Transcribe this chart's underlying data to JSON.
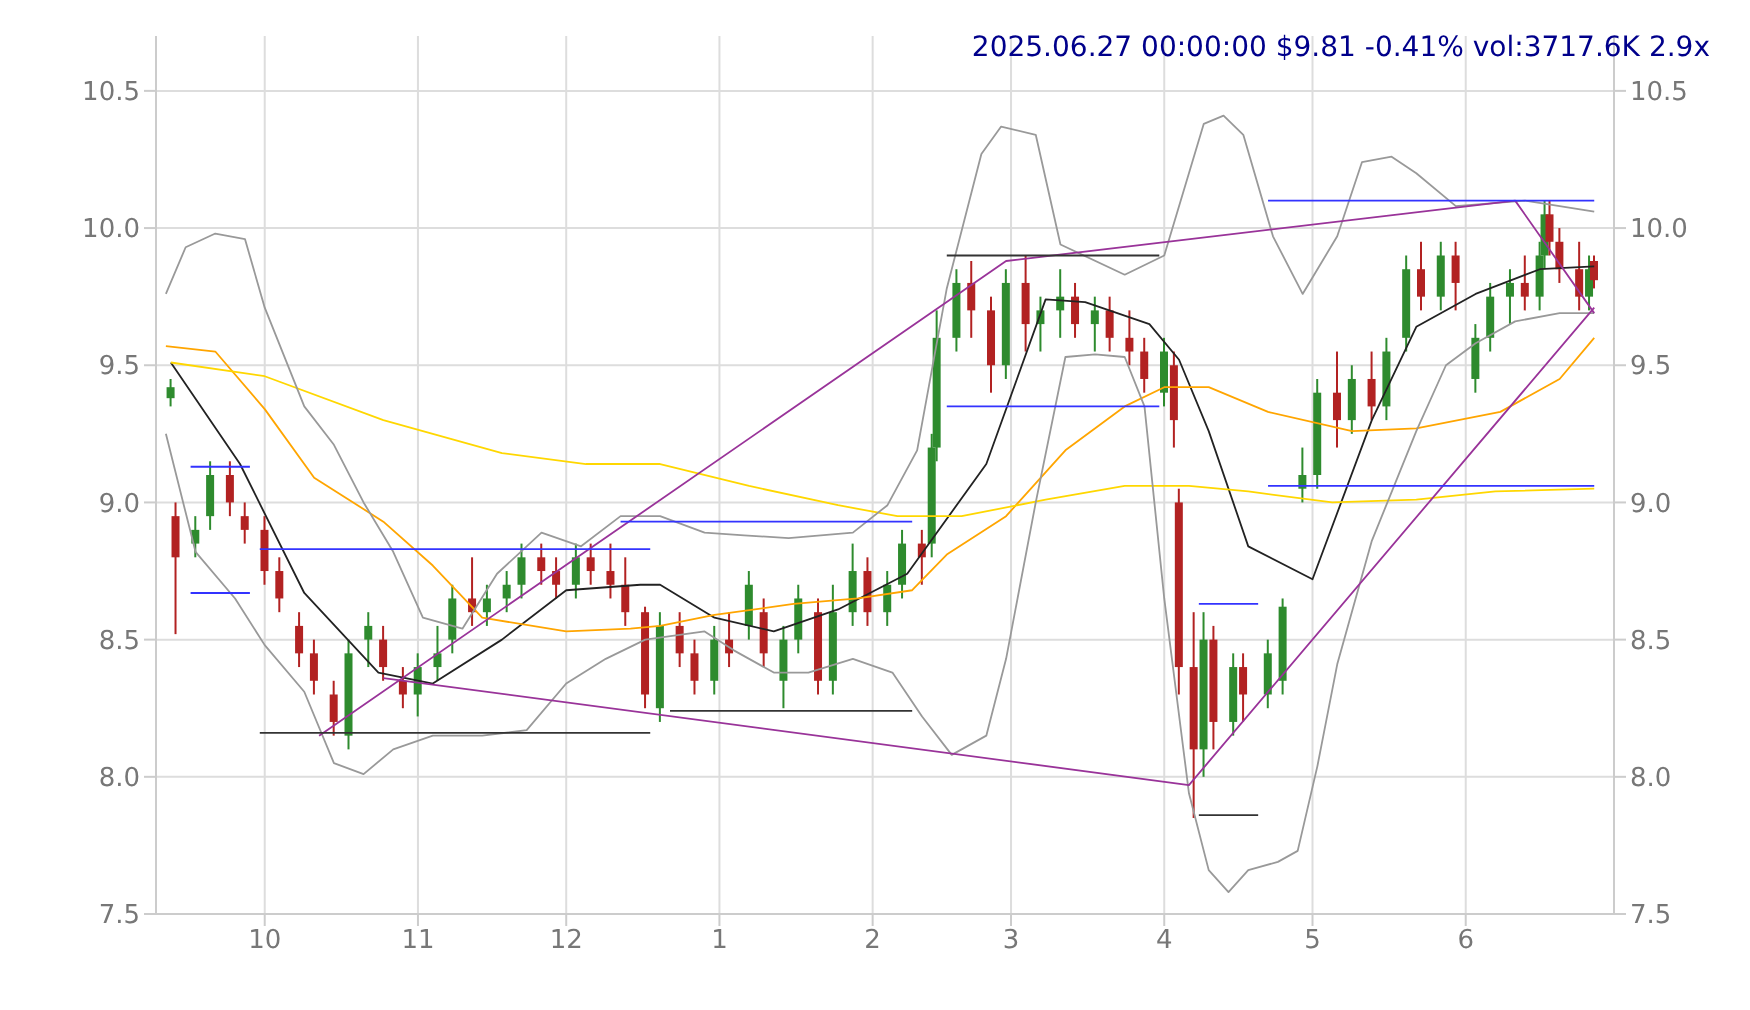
{
  "chart_data": {
    "type": "candlestick",
    "title": "2025.06.27 00:00:00 $9.81 -0.41% vol:3717.6K 2.9x",
    "grid": true,
    "marker": "none",
    "xlim": [
      "2024-09-09",
      "2025-07-01"
    ],
    "xticks": [
      {
        "value": "2024-10-01",
        "label": "10"
      },
      {
        "value": "2024-11-01",
        "label": "11"
      },
      {
        "value": "2024-12-01",
        "label": "12"
      },
      {
        "value": "2025-01-01",
        "label": "1"
      },
      {
        "value": "2025-02-01",
        "label": "2"
      },
      {
        "value": "2025-03-01",
        "label": "3"
      },
      {
        "value": "2025-04-01",
        "label": "4"
      },
      {
        "value": "2025-05-01",
        "label": "5"
      },
      {
        "value": "2025-06-01",
        "label": "6"
      }
    ],
    "ylim": [
      7.5,
      10.7
    ],
    "yticks": [
      {
        "value": 7.5,
        "label": "7.5"
      },
      {
        "value": 8,
        "label": "8.0"
      },
      {
        "value": 8.5,
        "label": "8.5"
      },
      {
        "value": 9,
        "label": "9.0"
      },
      {
        "value": 9.5,
        "label": "9.5"
      },
      {
        "value": 10,
        "label": "10.0"
      },
      {
        "value": 10.5,
        "label": "10.5"
      }
    ],
    "y2lim": [
      7.5,
      10.7
    ],
    "y2ticks": [
      {
        "value": 7.5,
        "label": "7.5"
      },
      {
        "value": 8,
        "label": "8.0"
      },
      {
        "value": 8.5,
        "label": "8.5"
      },
      {
        "value": 9,
        "label": "9.0"
      },
      {
        "value": 9.5,
        "label": "9.5"
      },
      {
        "value": 10,
        "label": "10.0"
      },
      {
        "value": 10.5,
        "label": "10.5"
      }
    ],
    "x": [
      "2024-09-12",
      "2024-09-13",
      "2024-09-17",
      "2024-09-20",
      "2024-09-24",
      "2024-09-27",
      "2024-10-01",
      "2024-10-04",
      "2024-10-08",
      "2024-10-11",
      "2024-10-15",
      "2024-10-18",
      "2024-10-22",
      "2024-10-25",
      "2024-10-29",
      "2024-11-01",
      "2024-11-05",
      "2024-11-08",
      "2024-11-12",
      "2024-11-15",
      "2024-11-19",
      "2024-11-22",
      "2024-11-26",
      "2024-11-29",
      "2024-12-03",
      "2024-12-06",
      "2024-12-10",
      "2024-12-13",
      "2024-12-17",
      "2024-12-20",
      "2024-12-24",
      "2024-12-27",
      "2024-12-31",
      "2025-01-03",
      "2025-01-07",
      "2025-01-10",
      "2025-01-14",
      "2025-01-17",
      "2025-01-21",
      "2025-01-24",
      "2025-01-28",
      "2025-01-31",
      "2025-02-04",
      "2025-02-07",
      "2025-02-11",
      "2025-02-13",
      "2025-02-14",
      "2025-02-18",
      "2025-02-21",
      "2025-02-25",
      "2025-02-28",
      "2025-03-04",
      "2025-03-07",
      "2025-03-11",
      "2025-03-14",
      "2025-03-18",
      "2025-03-21",
      "2025-03-25",
      "2025-03-28",
      "2025-04-01",
      "2025-04-03",
      "2025-04-04",
      "2025-04-07",
      "2025-04-09",
      "2025-04-11",
      "2025-04-15",
      "2025-04-17",
      "2025-04-22",
      "2025-04-25",
      "2025-04-29",
      "2025-05-02",
      "2025-05-06",
      "2025-05-09",
      "2025-05-13",
      "2025-05-16",
      "2025-05-20",
      "2025-05-23",
      "2025-05-27",
      "2025-05-30",
      "2025-06-03",
      "2025-06-06",
      "2025-06-10",
      "2025-06-13",
      "2025-06-16",
      "2025-06-17",
      "2025-06-18",
      "2025-06-20",
      "2025-06-24",
      "2025-06-26",
      "2025-06-27"
    ],
    "ohlc": [
      [
        9.38,
        9.45,
        9.35,
        9.42
      ],
      [
        8.95,
        9.0,
        8.52,
        8.8
      ],
      [
        8.85,
        8.95,
        8.8,
        8.9
      ],
      [
        8.95,
        9.15,
        8.9,
        9.1
      ],
      [
        9.1,
        9.15,
        8.95,
        9.0
      ],
      [
        8.95,
        9.0,
        8.85,
        8.9
      ],
      [
        8.9,
        8.95,
        8.7,
        8.75
      ],
      [
        8.75,
        8.8,
        8.6,
        8.65
      ],
      [
        8.55,
        8.6,
        8.4,
        8.45
      ],
      [
        8.45,
        8.5,
        8.3,
        8.35
      ],
      [
        8.3,
        8.35,
        8.15,
        8.2
      ],
      [
        8.15,
        8.5,
        8.1,
        8.45
      ],
      [
        8.5,
        8.6,
        8.4,
        8.55
      ],
      [
        8.5,
        8.55,
        8.35,
        8.4
      ],
      [
        8.35,
        8.4,
        8.25,
        8.3
      ],
      [
        8.3,
        8.45,
        8.22,
        8.4
      ],
      [
        8.4,
        8.55,
        8.35,
        8.45
      ],
      [
        8.5,
        8.7,
        8.45,
        8.65
      ],
      [
        8.65,
        8.8,
        8.55,
        8.6
      ],
      [
        8.6,
        8.7,
        8.55,
        8.65
      ],
      [
        8.65,
        8.75,
        8.6,
        8.7
      ],
      [
        8.7,
        8.85,
        8.65,
        8.8
      ],
      [
        8.8,
        8.85,
        8.7,
        8.75
      ],
      [
        8.75,
        8.8,
        8.65,
        8.7
      ],
      [
        8.7,
        8.85,
        8.65,
        8.8
      ],
      [
        8.8,
        8.85,
        8.7,
        8.75
      ],
      [
        8.75,
        8.85,
        8.65,
        8.7
      ],
      [
        8.7,
        8.8,
        8.55,
        8.6
      ],
      [
        8.6,
        8.62,
        8.25,
        8.3
      ],
      [
        8.25,
        8.6,
        8.2,
        8.55
      ],
      [
        8.55,
        8.6,
        8.4,
        8.45
      ],
      [
        8.45,
        8.5,
        8.3,
        8.35
      ],
      [
        8.35,
        8.55,
        8.3,
        8.5
      ],
      [
        8.5,
        8.6,
        8.4,
        8.45
      ],
      [
        8.55,
        8.75,
        8.5,
        8.7
      ],
      [
        8.6,
        8.65,
        8.4,
        8.45
      ],
      [
        8.35,
        8.55,
        8.25,
        8.5
      ],
      [
        8.5,
        8.7,
        8.45,
        8.65
      ],
      [
        8.6,
        8.65,
        8.3,
        8.35
      ],
      [
        8.35,
        8.7,
        8.3,
        8.6
      ],
      [
        8.6,
        8.85,
        8.55,
        8.75
      ],
      [
        8.75,
        8.8,
        8.55,
        8.6
      ],
      [
        8.6,
        8.75,
        8.55,
        8.7
      ],
      [
        8.7,
        8.9,
        8.65,
        8.85
      ],
      [
        8.85,
        8.9,
        8.7,
        8.8
      ],
      [
        8.85,
        9.25,
        8.8,
        9.2
      ],
      [
        9.2,
        9.7,
        9.15,
        9.6
      ],
      [
        9.6,
        9.85,
        9.55,
        9.8
      ],
      [
        9.8,
        9.88,
        9.6,
        9.7
      ],
      [
        9.7,
        9.75,
        9.4,
        9.5
      ],
      [
        9.5,
        9.85,
        9.45,
        9.8
      ],
      [
        9.8,
        9.9,
        9.55,
        9.65
      ],
      [
        9.65,
        9.75,
        9.55,
        9.7
      ],
      [
        9.7,
        9.85,
        9.6,
        9.75
      ],
      [
        9.75,
        9.8,
        9.6,
        9.65
      ],
      [
        9.65,
        9.75,
        9.55,
        9.7
      ],
      [
        9.7,
        9.75,
        9.55,
        9.6
      ],
      [
        9.6,
        9.7,
        9.5,
        9.55
      ],
      [
        9.55,
        9.6,
        9.4,
        9.45
      ],
      [
        9.4,
        9.6,
        9.35,
        9.55
      ],
      [
        9.5,
        9.55,
        9.2,
        9.3
      ],
      [
        9.0,
        9.05,
        8.3,
        8.4
      ],
      [
        8.4,
        8.6,
        7.85,
        8.1
      ],
      [
        8.1,
        8.6,
        8.0,
        8.5
      ],
      [
        8.5,
        8.55,
        8.1,
        8.2
      ],
      [
        8.2,
        8.45,
        8.15,
        8.4
      ],
      [
        8.4,
        8.45,
        8.2,
        8.3
      ],
      [
        8.3,
        8.5,
        8.25,
        8.45
      ],
      [
        8.35,
        8.65,
        8.3,
        8.62
      ],
      [
        9.05,
        9.2,
        9.0,
        9.1
      ],
      [
        9.1,
        9.45,
        9.05,
        9.4
      ],
      [
        9.4,
        9.55,
        9.2,
        9.3
      ],
      [
        9.3,
        9.5,
        9.25,
        9.45
      ],
      [
        9.45,
        9.55,
        9.3,
        9.35
      ],
      [
        9.35,
        9.6,
        9.3,
        9.55
      ],
      [
        9.6,
        9.9,
        9.55,
        9.85
      ],
      [
        9.85,
        9.95,
        9.7,
        9.75
      ],
      [
        9.75,
        9.95,
        9.7,
        9.9
      ],
      [
        9.9,
        9.95,
        9.7,
        9.8
      ],
      [
        9.45,
        9.65,
        9.4,
        9.6
      ],
      [
        9.6,
        9.8,
        9.55,
        9.75
      ],
      [
        9.75,
        9.85,
        9.65,
        9.8
      ],
      [
        9.8,
        9.9,
        9.7,
        9.75
      ],
      [
        9.75,
        9.95,
        9.7,
        9.9
      ],
      [
        9.9,
        10.1,
        9.85,
        10.05
      ],
      [
        10.05,
        10.1,
        9.9,
        9.95
      ],
      [
        9.95,
        10.0,
        9.8,
        9.85
      ],
      [
        9.85,
        9.95,
        9.7,
        9.75
      ],
      [
        9.75,
        9.9,
        9.7,
        9.85
      ],
      [
        9.88,
        9.9,
        9.78,
        9.81
      ]
    ],
    "colors": [
      "#2e8b2e",
      "#b22222",
      "#2e8b2e",
      "#2e8b2e",
      "#b22222",
      "#b22222",
      "#b22222",
      "#b22222",
      "#b22222",
      "#b22222",
      "#b22222",
      "#2e8b2e",
      "#2e8b2e",
      "#b22222",
      "#b22222",
      "#2e8b2e",
      "#2e8b2e",
      "#2e8b2e",
      "#b22222",
      "#2e8b2e",
      "#2e8b2e",
      "#2e8b2e",
      "#b22222",
      "#b22222",
      "#2e8b2e",
      "#b22222",
      "#b22222",
      "#b22222",
      "#b22222",
      "#2e8b2e",
      "#b22222",
      "#b22222",
      "#2e8b2e",
      "#b22222",
      "#2e8b2e",
      "#b22222",
      "#2e8b2e",
      "#2e8b2e",
      "#b22222",
      "#2e8b2e",
      "#2e8b2e",
      "#b22222",
      "#2e8b2e",
      "#2e8b2e",
      "#b22222",
      "#2e8b2e",
      "#2e8b2e",
      "#2e8b2e",
      "#b22222",
      "#b22222",
      "#2e8b2e",
      "#b22222",
      "#2e8b2e",
      "#2e8b2e",
      "#b22222",
      "#2e8b2e",
      "#b22222",
      "#b22222",
      "#b22222",
      "#2e8b2e",
      "#b22222",
      "#b22222",
      "#b22222",
      "#2e8b2e",
      "#b22222",
      "#2e8b2e",
      "#b22222",
      "#2e8b2e",
      "#2e8b2e",
      "#2e8b2e",
      "#2e8b2e",
      "#b22222",
      "#2e8b2e",
      "#b22222",
      "#2e8b2e",
      "#2e8b2e",
      "#b22222",
      "#2e8b2e",
      "#b22222",
      "#2e8b2e",
      "#2e8b2e",
      "#2e8b2e",
      "#b22222",
      "#2e8b2e",
      "#2e8b2e",
      "#b22222",
      "#b22222",
      "#b22222",
      "#2e8b2e",
      "#b22222"
    ],
    "series": [
      {
        "type": "line",
        "color": "#222222",
        "x": [
          "2024-09-12",
          "2024-09-26",
          "2024-10-09",
          "2024-10-24",
          "2024-11-04",
          "2024-11-18",
          "2024-12-01",
          "2024-12-16",
          "2024-12-20",
          "2024-12-31",
          "2025-01-12",
          "2025-01-25",
          "2025-02-08",
          "2025-02-24",
          "2025-03-08",
          "2025-03-16",
          "2025-03-29",
          "2025-04-04",
          "2025-04-10",
          "2025-04-18",
          "2025-05-01",
          "2025-05-13",
          "2025-05-22",
          "2025-06-03",
          "2025-06-16",
          "2025-06-27"
        ],
        "values": [
          9.51,
          9.14,
          8.67,
          8.38,
          8.34,
          8.5,
          8.68,
          8.7,
          8.7,
          8.58,
          8.53,
          8.61,
          8.74,
          9.14,
          9.74,
          9.73,
          9.65,
          9.52,
          9.26,
          8.84,
          8.72,
          9.3,
          9.64,
          9.76,
          9.85,
          9.86
        ]
      },
      {
        "type": "line",
        "color": "#ffa500",
        "x": [
          "2024-09-11",
          "2024-09-21",
          "2024-10-01",
          "2024-10-11",
          "2024-10-25",
          "2024-11-04",
          "2024-11-14",
          "2024-12-01",
          "2024-12-14",
          "2024-12-20",
          "2024-12-31",
          "2025-01-16",
          "2025-01-29",
          "2025-02-09",
          "2025-02-16",
          "2025-02-28",
          "2025-03-12",
          "2025-03-24",
          "2025-04-01",
          "2025-04-10",
          "2025-04-22",
          "2025-05-09",
          "2025-05-22",
          "2025-06-08",
          "2025-06-20",
          "2025-06-27"
        ],
        "values": [
          9.57,
          9.55,
          9.34,
          9.09,
          8.93,
          8.77,
          8.58,
          8.53,
          8.54,
          8.55,
          8.59,
          8.63,
          8.65,
          8.68,
          8.81,
          8.95,
          9.19,
          9.35,
          9.42,
          9.42,
          9.33,
          9.26,
          9.27,
          9.33,
          9.45,
          9.6
        ]
      },
      {
        "type": "line",
        "color": "#ffd700",
        "x": [
          "2024-09-12",
          "2024-10-01",
          "2024-10-25",
          "2024-11-18",
          "2024-12-05",
          "2024-12-20",
          "2025-01-07",
          "2025-01-25",
          "2025-02-06",
          "2025-02-19",
          "2025-03-08",
          "2025-03-24",
          "2025-04-06",
          "2025-04-18",
          "2025-05-05",
          "2025-05-22",
          "2025-06-07",
          "2025-06-27"
        ],
        "values": [
          9.51,
          9.46,
          9.3,
          9.18,
          9.14,
          9.14,
          9.06,
          8.99,
          8.95,
          8.95,
          9.01,
          9.06,
          9.06,
          9.04,
          9.0,
          9.01,
          9.04,
          9.05
        ]
      },
      {
        "type": "line",
        "color": "#999999",
        "x": [
          "2024-09-11",
          "2024-09-15",
          "2024-09-21",
          "2024-09-27",
          "2024-10-01",
          "2024-10-09",
          "2024-10-15",
          "2024-10-21",
          "2024-10-27",
          "2024-11-02",
          "2024-11-10",
          "2024-11-17",
          "2024-11-26",
          "2024-12-04",
          "2024-12-12",
          "2024-12-20",
          "2024-12-29",
          "2025-01-06",
          "2025-01-15",
          "2025-01-28",
          "2025-02-04",
          "2025-02-10",
          "2025-02-16",
          "2025-02-23",
          "2025-02-27",
          "2025-03-06",
          "2025-03-11",
          "2025-03-24",
          "2025-04-01",
          "2025-04-09",
          "2025-04-13",
          "2025-04-17",
          "2025-04-23",
          "2025-04-29",
          "2025-05-06",
          "2025-05-11",
          "2025-05-17",
          "2025-05-22",
          "2025-05-30",
          "2025-06-13",
          "2025-06-27"
        ],
        "values": [
          9.76,
          9.93,
          9.98,
          9.96,
          9.71,
          9.35,
          9.21,
          9.0,
          8.82,
          8.58,
          8.54,
          8.74,
          8.89,
          8.84,
          8.95,
          8.95,
          8.89,
          8.88,
          8.87,
          8.89,
          8.99,
          9.19,
          9.78,
          10.27,
          10.37,
          10.34,
          9.94,
          9.83,
          9.9,
          10.38,
          10.41,
          10.34,
          9.97,
          9.76,
          9.97,
          10.24,
          10.26,
          10.2,
          10.08,
          10.1,
          10.06
        ]
      },
      {
        "type": "line",
        "color": "#999999",
        "x": [
          "2024-09-11",
          "2024-09-17",
          "2024-09-25",
          "2024-10-01",
          "2024-10-09",
          "2024-10-15",
          "2024-10-21",
          "2024-10-27",
          "2024-11-04",
          "2024-11-14",
          "2024-11-23",
          "2024-12-01",
          "2024-12-09",
          "2024-12-17",
          "2024-12-29",
          "2025-01-04",
          "2025-01-12",
          "2025-01-19",
          "2025-01-28",
          "2025-02-05",
          "2025-02-11",
          "2025-02-17",
          "2025-02-24",
          "2025-02-28",
          "2025-03-06",
          "2025-03-12",
          "2025-03-18",
          "2025-03-24",
          "2025-03-28",
          "2025-04-01",
          "2025-04-06",
          "2025-04-10",
          "2025-04-14",
          "2025-04-18",
          "2025-04-24",
          "2025-04-28",
          "2025-05-02",
          "2025-05-06",
          "2025-05-13",
          "2025-05-22",
          "2025-05-28",
          "2025-06-03",
          "2025-06-11",
          "2025-06-20",
          "2025-06-27"
        ],
        "values": [
          9.25,
          8.82,
          8.65,
          8.48,
          8.31,
          8.05,
          8.01,
          8.1,
          8.15,
          8.15,
          8.17,
          8.34,
          8.43,
          8.5,
          8.53,
          8.46,
          8.38,
          8.38,
          8.43,
          8.38,
          8.22,
          8.08,
          8.15,
          8.43,
          9.0,
          9.53,
          9.54,
          9.53,
          9.35,
          8.65,
          7.94,
          7.66,
          7.58,
          7.66,
          7.69,
          7.73,
          8.04,
          8.41,
          8.86,
          9.26,
          9.5,
          9.58,
          9.66,
          9.69,
          9.69
        ]
      },
      {
        "type": "line",
        "color": "#993399",
        "x": [
          "2024-10-12",
          "2025-02-28",
          "2025-06-11",
          "2025-06-27"
        ],
        "values": [
          8.15,
          9.88,
          10.1,
          9.69
        ]
      },
      {
        "type": "line",
        "color": "#993399",
        "x": [
          "2024-10-25",
          "2025-04-06",
          "2025-06-27"
        ],
        "values": [
          8.36,
          7.97,
          9.71
        ]
      },
      {
        "type": "line",
        "color": "#3333ff",
        "x": [
          "2024-09-16",
          "2024-09-28"
        ],
        "values": [
          9.13,
          9.13
        ]
      },
      {
        "type": "line",
        "color": "#3333ff",
        "x": [
          "2024-09-16",
          "2024-09-28"
        ],
        "values": [
          8.67,
          8.67
        ]
      },
      {
        "type": "line",
        "color": "#3333ff",
        "x": [
          "2024-09-30",
          "2024-12-18"
        ],
        "values": [
          8.83,
          8.83
        ]
      },
      {
        "type": "line",
        "color": "#333333",
        "x": [
          "2024-09-30",
          "2024-12-18"
        ],
        "values": [
          8.16,
          8.16
        ]
      },
      {
        "type": "line",
        "color": "#3333ff",
        "x": [
          "2024-12-12",
          "2025-02-09"
        ],
        "values": [
          8.93,
          8.93
        ]
      },
      {
        "type": "line",
        "color": "#333333",
        "x": [
          "2024-12-22",
          "2025-02-09"
        ],
        "values": [
          8.24,
          8.24
        ]
      },
      {
        "type": "line",
        "color": "#3333ff",
        "x": [
          "2025-02-16",
          "2025-03-31"
        ],
        "values": [
          9.35,
          9.35
        ]
      },
      {
        "type": "line",
        "color": "#333333",
        "x": [
          "2025-02-16",
          "2025-03-31"
        ],
        "values": [
          9.9,
          9.9
        ]
      },
      {
        "type": "line",
        "color": "#3333ff",
        "x": [
          "2025-04-08",
          "2025-04-20"
        ],
        "values": [
          8.63,
          8.63
        ]
      },
      {
        "type": "line",
        "color": "#333333",
        "x": [
          "2025-04-08",
          "2025-04-20"
        ],
        "values": [
          7.86,
          7.86
        ]
      },
      {
        "type": "line",
        "color": "#3333ff",
        "x": [
          "2025-04-22",
          "2025-06-27"
        ],
        "values": [
          10.1,
          10.1
        ]
      },
      {
        "type": "line",
        "color": "#3333ff",
        "x": [
          "2025-04-22",
          "2025-06-27"
        ],
        "values": [
          9.06,
          9.06
        ]
      }
    ]
  }
}
